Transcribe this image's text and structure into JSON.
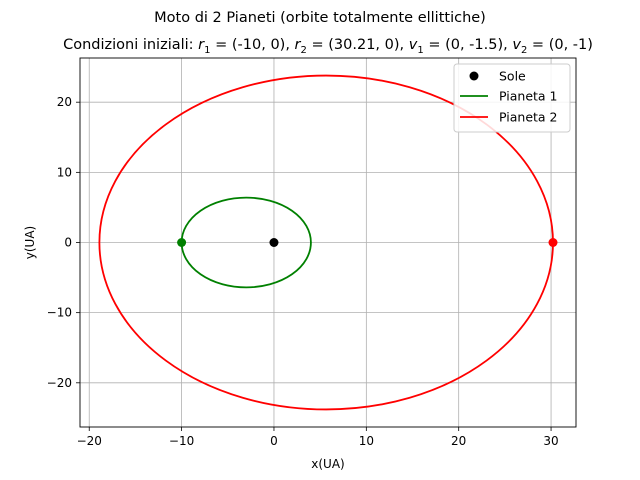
{
  "chart_data": {
    "type": "line",
    "suptitle": "Moto di 2 Pianeti (orbite totalmente ellittiche)",
    "title": {
      "prefix": "Condizioni iniziali: ",
      "parts": [
        {
          "var": "r",
          "sub": "1",
          "value": " = (-10, 0), "
        },
        {
          "var": "r",
          "sub": "2",
          "value": " = (30.21, 0), "
        },
        {
          "var": "v",
          "sub": "1",
          "value": " = (0, -1.5), "
        },
        {
          "var": "v",
          "sub": "2",
          "value": " = (0, -1)"
        }
      ]
    },
    "xlabel": "x(UA)",
    "ylabel": "y(UA)",
    "xlim": [
      -21,
      32.7
    ],
    "ylim": [
      -26.3,
      26.3
    ],
    "xticks": [
      -20,
      -10,
      0,
      10,
      20,
      30
    ],
    "yticks": [
      -20,
      -10,
      0,
      10,
      20
    ],
    "xtick_labels": [
      "−20",
      "−10",
      "0",
      "10",
      "20",
      "30"
    ],
    "ytick_labels": [
      "−20",
      "−10",
      "0",
      "10",
      "20"
    ],
    "grid": true,
    "legend_position": "top-right",
    "sun": {
      "name": "Sole",
      "x": 0,
      "y": 0,
      "color": "#000000"
    },
    "series": [
      {
        "name": "Pianeta 1",
        "color": "#008000",
        "start": {
          "x": -10,
          "y": 0
        },
        "orbit": {
          "x_min": -10,
          "x_max": 4.0,
          "y_max": 6.4
        }
      },
      {
        "name": "Pianeta 2",
        "color": "#ff0000",
        "start": {
          "x": 30.21,
          "y": 0
        },
        "orbit": {
          "x_min": -18.9,
          "x_max": 30.21,
          "y_max": 23.8
        }
      }
    ]
  }
}
